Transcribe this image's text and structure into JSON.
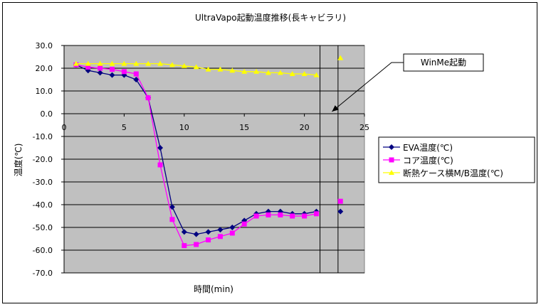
{
  "chart_data": {
    "type": "line",
    "title": "UltraVapo起動温度推移(長キャビラリ)",
    "xlabel": "時間(min)",
    "ylabel": "温度(℃)",
    "xlim": [
      0,
      25
    ],
    "ylim": [
      -70,
      30
    ],
    "x_ticks": [
      "0",
      "5",
      "10",
      "15",
      "20",
      "25"
    ],
    "y_ticks": [
      "30.0",
      "20.0",
      "10.0",
      "0.0",
      "-10.0",
      "-20.0",
      "-30.0",
      "-40.0",
      "-50.0",
      "-60.0",
      "-70.0"
    ],
    "x_tick_values": [
      0,
      5,
      10,
      15,
      20,
      25
    ],
    "y_tick_values": [
      30,
      20,
      10,
      0,
      -10,
      -20,
      -30,
      -40,
      -50,
      -60,
      -70
    ],
    "vlines": [
      21.3,
      22.8
    ],
    "grid": "horizontal",
    "plot_background": "#c0c0c0",
    "legend_position": "right",
    "series": [
      {
        "name": "EVA温度(℃)",
        "color": "#000080",
        "marker": "diamond",
        "x": [
          1,
          2,
          3,
          4,
          5,
          6,
          7,
          8,
          9,
          10,
          11,
          12,
          13,
          14,
          15,
          16,
          17,
          18,
          19,
          20,
          21,
          23
        ],
        "y": [
          21.5,
          19,
          18,
          17,
          17,
          15,
          7,
          -15,
          -41,
          -52,
          -53,
          -52,
          -51,
          -50,
          -47,
          -44,
          -43,
          -43,
          -44,
          -44,
          -43,
          -43
        ]
      },
      {
        "name": "コア温度(℃)",
        "color": "#ff00ff",
        "marker": "square",
        "x": [
          1,
          2,
          3,
          4,
          5,
          6,
          7,
          8,
          9,
          10,
          11,
          12,
          13,
          14,
          15,
          16,
          17,
          18,
          19,
          20,
          21,
          23
        ],
        "y": [
          21.5,
          20.5,
          20,
          19.5,
          18.5,
          17.5,
          7,
          -22.5,
          -46.5,
          -58,
          -57.5,
          -55.5,
          -54,
          -52.5,
          -48.5,
          -45,
          -44.5,
          -44.5,
          -45,
          -45,
          -44,
          -38.5
        ]
      },
      {
        "name": "断熱ケース横M/B温度(℃)",
        "color": "#ffff00",
        "marker": "triangle",
        "x": [
          1,
          2,
          3,
          4,
          5,
          6,
          7,
          8,
          9,
          10,
          11,
          12,
          13,
          14,
          15,
          16,
          17,
          18,
          19,
          20,
          21,
          23
        ],
        "y": [
          22,
          22,
          22,
          22,
          22,
          22,
          22,
          22,
          21.5,
          21,
          20.5,
          19.5,
          19.5,
          19,
          18.5,
          18.5,
          18,
          18,
          17.5,
          17.5,
          17,
          24.5
        ]
      }
    ],
    "annotations": [
      {
        "text": "WinMe起動",
        "target_x": 22,
        "target_y": 0
      }
    ]
  }
}
